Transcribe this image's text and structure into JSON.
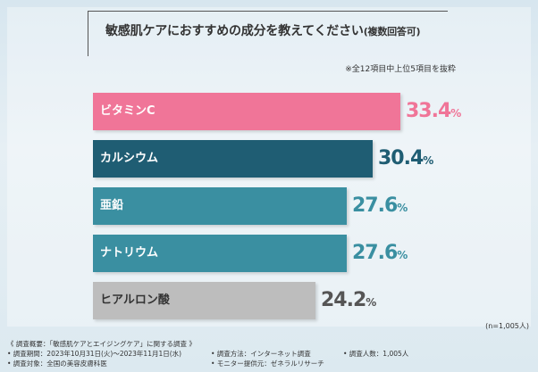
{
  "title": {
    "main": "敏感肌ケアにおすすめの成分を教えてください",
    "suffix": "(複数回答可)"
  },
  "note": "※全12項目中上位5項目を抜粋",
  "n_note": "(n=1,005人)",
  "colors": {
    "pink": "#f07598",
    "dark_teal": "#1f5d73",
    "teal": "#3a8fa1",
    "gray": "#bdbdbd"
  },
  "chart_data": {
    "type": "bar",
    "orientation": "horizontal",
    "title": "敏感肌ケアにおすすめの成分を教えてください(複数回答可)",
    "categories": [
      "ビタミンC",
      "カルシウム",
      "亜鉛",
      "ナトリウム",
      "ヒアルロン酸"
    ],
    "values": [
      33.4,
      30.4,
      27.6,
      27.6,
      24.2
    ],
    "value_texts": [
      "33.4",
      "30.4",
      "27.6",
      "27.6",
      "24.2"
    ],
    "unit": "%",
    "bar_colors": [
      "#f07598",
      "#1f5d73",
      "#3a8fa1",
      "#3a8fa1",
      "#bdbdbd"
    ],
    "value_colors": [
      "#f07598",
      "#1f5d73",
      "#3a8fa1",
      "#3a8fa1",
      "#555555"
    ],
    "xlim": [
      0,
      33.4
    ]
  },
  "footer": {
    "overview": "《 調査概要：「敏感肌ケアとエイジングケア」に関する調査 》",
    "period": "• 調査期間：2023年10月31日(火)～2023年11月1日(水)",
    "target": "• 調査対象：全国の美容皮膚科医",
    "method": "• 調査方法：インターネット調査",
    "monitor": "• モニター提供元：ゼネラルリサーチ",
    "count": "• 調査人数：1,005人"
  }
}
